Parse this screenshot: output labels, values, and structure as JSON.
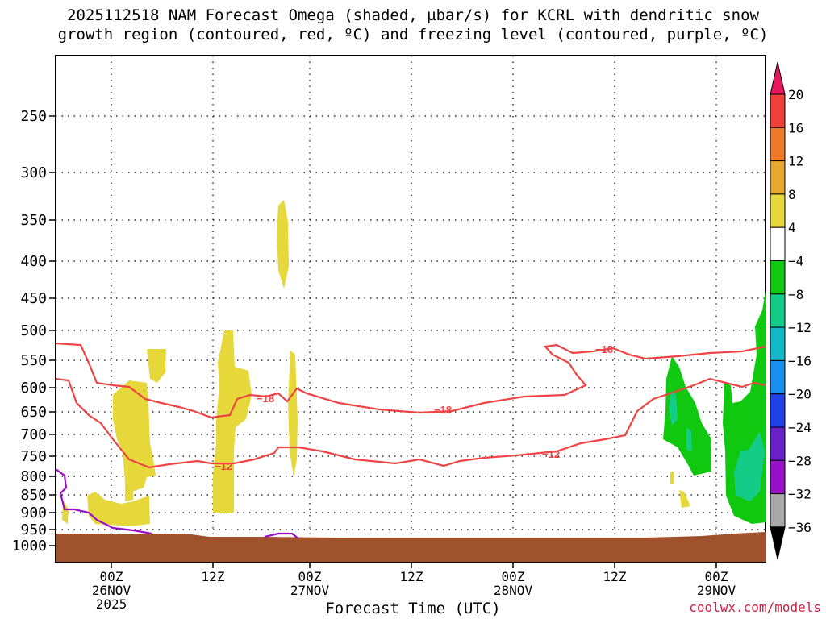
{
  "chart_data": {
    "type": "time-height",
    "title_line1": "2025112518 NAM Forecast Omega (shaded, µbar/s) for KCRL with dendritic snow",
    "title_line2": "growth region (contoured, red, ºC) and freezing level (contoured, purple, ºC)",
    "xlabel": "Forecast Time (UTC)",
    "credit": "coolwx.com/models",
    "y_ticks": [
      "250",
      "300",
      "350",
      "400",
      "450",
      "500",
      "550",
      "600",
      "650",
      "700",
      "750",
      "800",
      "850",
      "900",
      "950",
      "1000"
    ],
    "x_ticks": [
      {
        "label": "00Z",
        "sub": "26NOV",
        "sub2": "2025"
      },
      {
        "label": "12Z",
        "sub": "",
        "sub2": ""
      },
      {
        "label": "00Z",
        "sub": "27NOV",
        "sub2": ""
      },
      {
        "label": "12Z",
        "sub": "",
        "sub2": ""
      },
      {
        "label": "00Z",
        "sub": "28NOV",
        "sub2": ""
      },
      {
        "label": "12Z",
        "sub": "",
        "sub2": ""
      },
      {
        "label": "00Z",
        "sub": "29NOV",
        "sub2": ""
      }
    ],
    "colorbar": {
      "labels": [
        "20",
        "16",
        "12",
        "8",
        "4",
        "−4",
        "−8",
        "−12",
        "−16",
        "−20",
        "−24",
        "−28",
        "−32",
        "−36"
      ],
      "colors": [
        "#e8155f",
        "#f0403a",
        "#f07a2a",
        "#e8a830",
        "#e6d83a",
        "#ffffff",
        "#10c810",
        "#12cc88",
        "#10b8c8",
        "#1890f0",
        "#2040e8",
        "#6a20c8",
        "#9a10c8",
        "#a8a8a8",
        "#000000"
      ]
    },
    "contours": {
      "dendritic_red": [
        {
          "level": -18,
          "label": "−18"
        },
        {
          "level": -12,
          "label": "−12"
        }
      ],
      "freezing_purple": [
        {
          "level": 0
        }
      ]
    },
    "colors": {
      "terrain": "#a0522d",
      "red_contour": "#ee4444",
      "purple_contour": "#9a10c8",
      "credit": "#cc2244"
    }
  }
}
